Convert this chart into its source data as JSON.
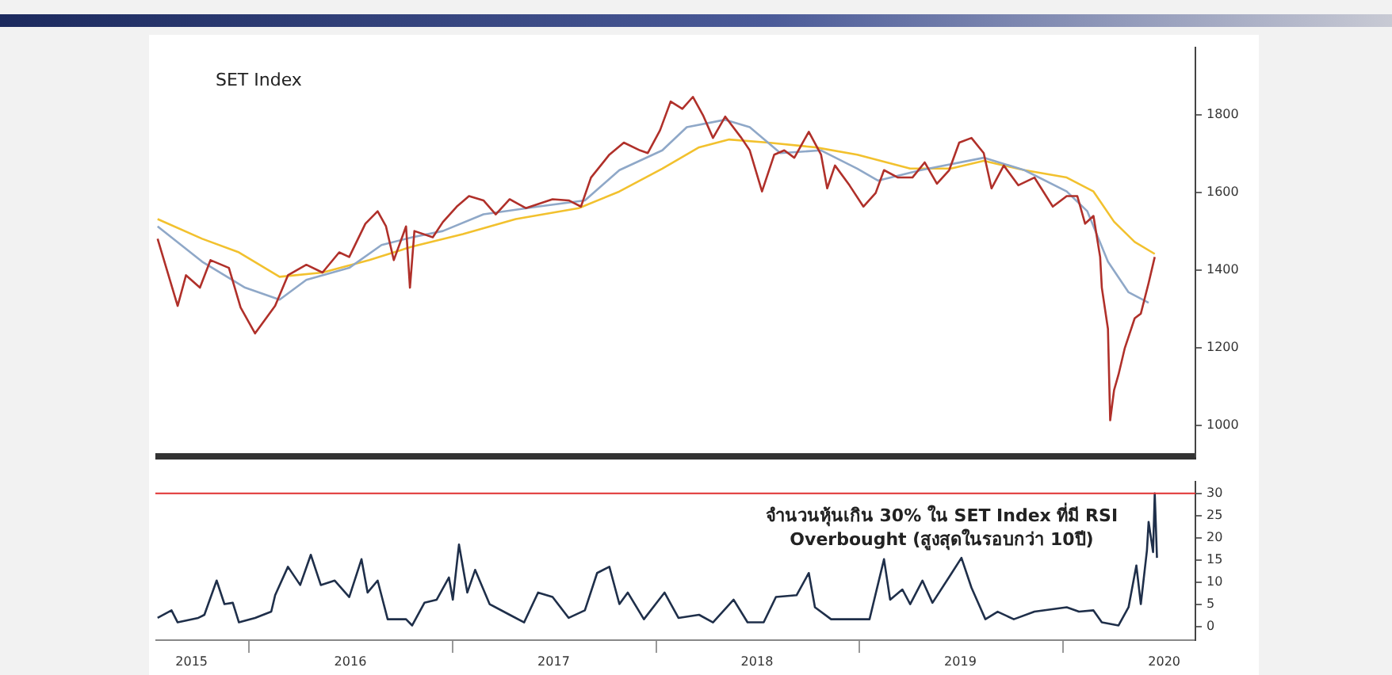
{
  "chart_data": [
    {
      "type": "line",
      "title": "SET Index",
      "marker": "none",
      "tick_labels": "y",
      "xlim": [
        "2015-07-17",
        "2020-08-26"
      ],
      "ylim": [
        920,
        1975
      ],
      "yticks": [
        1000,
        1200,
        1400,
        1600,
        1800
      ],
      "series": [
        {
          "color": "#b0302a",
          "x": [
            "2015-07-21",
            "2015-08-26",
            "2015-09-10",
            "2015-10-05",
            "2015-10-24",
            "2015-11-26",
            "2015-12-17",
            "2016-01-12",
            "2016-02-17",
            "2016-03-11",
            "2016-04-13",
            "2016-05-12",
            "2016-06-11",
            "2016-06-29",
            "2016-07-28",
            "2016-08-19",
            "2016-09-03",
            "2016-09-17",
            "2016-10-09",
            "2016-10-16",
            "2016-10-24",
            "2016-11-26",
            "2016-12-14",
            "2017-01-08",
            "2017-01-30",
            "2017-02-25",
            "2017-03-19",
            "2017-04-13",
            "2017-05-12",
            "2017-06-29",
            "2017-07-28",
            "2017-08-19",
            "2017-09-06",
            "2017-10-09",
            "2017-11-04",
            "2017-12-03",
            "2017-12-17",
            "2018-01-08",
            "2018-01-27",
            "2018-02-17",
            "2018-03-08",
            "2018-03-26",
            "2018-04-13",
            "2018-05-05",
            "2018-06-03",
            "2018-06-18",
            "2018-07-10",
            "2018-08-01",
            "2018-08-19",
            "2018-09-06",
            "2018-10-02",
            "2018-10-24",
            "2018-11-04",
            "2018-11-18",
            "2018-12-14",
            "2019-01-08",
            "2019-01-30",
            "2019-02-14",
            "2019-03-11",
            "2019-04-06",
            "2019-04-28",
            "2019-05-20",
            "2019-06-11",
            "2019-06-29",
            "2019-07-21",
            "2019-08-12",
            "2019-08-26",
            "2019-09-17",
            "2019-10-13",
            "2019-11-11",
            "2019-12-14",
            "2020-01-08",
            "2020-01-27",
            "2020-02-10",
            "2020-02-25",
            "2020-03-08",
            "2020-03-11",
            "2020-03-22",
            "2020-03-26",
            "2020-04-02",
            "2020-04-10",
            "2020-04-21",
            "2020-05-09",
            "2020-05-20",
            "2020-06-03",
            "2020-06-14"
          ],
          "values": [
            1481,
            1308,
            1387,
            1355,
            1426,
            1406,
            1304,
            1237,
            1308,
            1387,
            1414,
            1394,
            1446,
            1434,
            1520,
            1552,
            1513,
            1426,
            1513,
            1355,
            1501,
            1485,
            1524,
            1564,
            1591,
            1580,
            1544,
            1583,
            1560,
            1583,
            1580,
            1564,
            1639,
            1698,
            1729,
            1709,
            1702,
            1761,
            1835,
            1816,
            1847,
            1800,
            1741,
            1796,
            1741,
            1709,
            1603,
            1698,
            1709,
            1690,
            1757,
            1698,
            1611,
            1670,
            1619,
            1564,
            1599,
            1658,
            1639,
            1639,
            1678,
            1623,
            1658,
            1729,
            1741,
            1702,
            1611,
            1670,
            1619,
            1639,
            1564,
            1591,
            1591,
            1520,
            1540,
            1434,
            1355,
            1249,
            1013,
            1091,
            1131,
            1198,
            1276,
            1288,
            1367,
            1434
          ]
        },
        {
          "color": "#8fa8c8",
          "x": [
            "2015-07-21",
            "2015-10-09",
            "2015-12-25",
            "2016-02-25",
            "2016-04-13",
            "2016-06-29",
            "2016-08-26",
            "2016-10-20",
            "2016-12-14",
            "2017-02-25",
            "2017-06-03",
            "2017-08-26",
            "2017-10-27",
            "2018-01-12",
            "2018-02-25",
            "2018-05-05",
            "2018-06-18",
            "2018-08-12",
            "2018-10-24",
            "2018-12-28",
            "2019-02-03",
            "2019-04-21",
            "2019-08-12",
            "2019-10-24",
            "2020-01-08",
            "2020-02-14",
            "2020-03-22",
            "2020-04-28",
            "2020-06-03"
          ],
          "values": [
            1513,
            1422,
            1355,
            1324,
            1375,
            1406,
            1465,
            1485,
            1501,
            1544,
            1564,
            1580,
            1658,
            1709,
            1769,
            1788,
            1769,
            1702,
            1709,
            1662,
            1631,
            1658,
            1690,
            1658,
            1603,
            1552,
            1422,
            1343,
            1316
          ]
        },
        {
          "color": "#f2c12e",
          "x": [
            "2015-07-21",
            "2015-10-09",
            "2015-12-14",
            "2016-02-25",
            "2016-05-12",
            "2016-08-04",
            "2016-10-20",
            "2017-01-19",
            "2017-04-24",
            "2017-08-15",
            "2017-10-27",
            "2018-01-12",
            "2018-03-19",
            "2018-05-12",
            "2018-07-21",
            "2018-10-13",
            "2018-12-28",
            "2019-04-02",
            "2019-06-14",
            "2019-08-12",
            "2019-10-24",
            "2020-01-08",
            "2020-02-25",
            "2020-04-02",
            "2020-05-09",
            "2020-06-14"
          ],
          "values": [
            1532,
            1481,
            1446,
            1383,
            1394,
            1426,
            1461,
            1493,
            1532,
            1560,
            1603,
            1662,
            1717,
            1737,
            1729,
            1717,
            1698,
            1662,
            1662,
            1682,
            1658,
            1639,
            1603,
            1525,
            1473,
            1442
          ]
        }
      ]
    },
    {
      "type": "line",
      "marker": "none",
      "xlim": [
        "2015-07-17",
        "2020-08-26"
      ],
      "ylim": [
        -3,
        32.7
      ],
      "yticks": [
        0,
        5,
        10,
        15,
        20,
        25,
        30
      ],
      "xticks": [
        {
          "value": "2015-09-20",
          "label": "2015"
        },
        {
          "value": "2016-01-01",
          "label": null
        },
        {
          "value": "2016-07-01",
          "label": "2016"
        },
        {
          "value": "2017-01-01",
          "label": null
        },
        {
          "value": "2017-07-01",
          "label": "2017"
        },
        {
          "value": "2018-01-01",
          "label": null
        },
        {
          "value": "2018-07-01",
          "label": "2018"
        },
        {
          "value": "2019-01-01",
          "label": null
        },
        {
          "value": "2019-07-01",
          "label": "2019"
        },
        {
          "value": "2020-01-01",
          "label": null
        },
        {
          "value": "2020-07-01",
          "label": "2020"
        }
      ],
      "ref_lines": [
        {
          "axis": "y",
          "value": 30,
          "color": "#e03030"
        }
      ],
      "annotations": [
        "จำนวนหุ้นเกิน 30% ใน SET Index ที่มี RSI Overbought (สูงสุดในรอบกว่า 10ปี)"
      ],
      "series": [
        {
          "color": "#1f2f4a",
          "x": [
            "2015-07-21",
            "2015-08-15",
            "2015-08-26",
            "2015-10-02",
            "2015-10-13",
            "2015-11-04",
            "2015-11-18",
            "2015-12-03",
            "2015-12-14",
            "2016-01-12",
            "2016-02-10",
            "2016-02-17",
            "2016-03-11",
            "2016-04-02",
            "2016-04-21",
            "2016-05-09",
            "2016-06-03",
            "2016-06-29",
            "2016-07-21",
            "2016-08-01",
            "2016-08-19",
            "2016-09-06",
            "2016-10-09",
            "2016-10-20",
            "2016-11-11",
            "2016-12-03",
            "2016-12-25",
            "2017-01-01",
            "2017-01-12",
            "2017-01-27",
            "2017-02-10",
            "2017-03-08",
            "2017-04-13",
            "2017-05-09",
            "2017-06-03",
            "2017-06-29",
            "2017-07-28",
            "2017-08-26",
            "2017-09-17",
            "2017-10-09",
            "2017-10-27",
            "2017-11-11",
            "2017-12-10",
            "2018-01-16",
            "2018-02-10",
            "2018-03-19",
            "2018-04-13",
            "2018-05-20",
            "2018-06-14",
            "2018-07-13",
            "2018-08-04",
            "2018-09-10",
            "2018-10-02",
            "2018-10-13",
            "2018-11-11",
            "2018-12-28",
            "2019-01-19",
            "2019-02-14",
            "2019-02-25",
            "2019-03-19",
            "2019-04-02",
            "2019-04-24",
            "2019-05-12",
            "2019-06-14",
            "2019-07-03",
            "2019-07-21",
            "2019-08-15",
            "2019-09-06",
            "2019-10-05",
            "2019-11-11",
            "2020-01-08",
            "2020-01-30",
            "2020-02-25",
            "2020-03-11",
            "2020-04-10",
            "2020-04-28",
            "2020-05-12",
            "2020-05-20",
            "2020-05-31",
            "2020-06-03",
            "2020-06-11",
            "2020-06-14",
            "2020-06-18"
          ],
          "values": [
            2,
            3.7,
            1,
            2,
            2.7,
            10.4,
            5.1,
            5.4,
            1,
            2,
            3.4,
            7.1,
            13.5,
            9.4,
            16.2,
            9.4,
            10.4,
            6.7,
            15.2,
            7.7,
            10.4,
            1.7,
            1.7,
            0.3,
            5.4,
            6.1,
            11.1,
            6.1,
            18.5,
            7.7,
            12.8,
            5.1,
            2.7,
            1,
            7.7,
            6.7,
            2,
            3.7,
            12.1,
            13.5,
            5.1,
            7.7,
            1.7,
            7.7,
            2,
            2.7,
            1,
            6.1,
            1,
            1,
            6.7,
            7.1,
            12.1,
            4.4,
            1.7,
            1.7,
            1.7,
            15.2,
            6.1,
            8.4,
            5.1,
            10.4,
            5.4,
            11.8,
            15.5,
            8.8,
            1.7,
            3.4,
            1.7,
            3.4,
            4.4,
            3.4,
            3.7,
            1,
            0.3,
            4.4,
            13.8,
            5.1,
            17.2,
            23.6,
            16.8,
            30,
            15.5
          ]
        }
      ]
    }
  ]
}
